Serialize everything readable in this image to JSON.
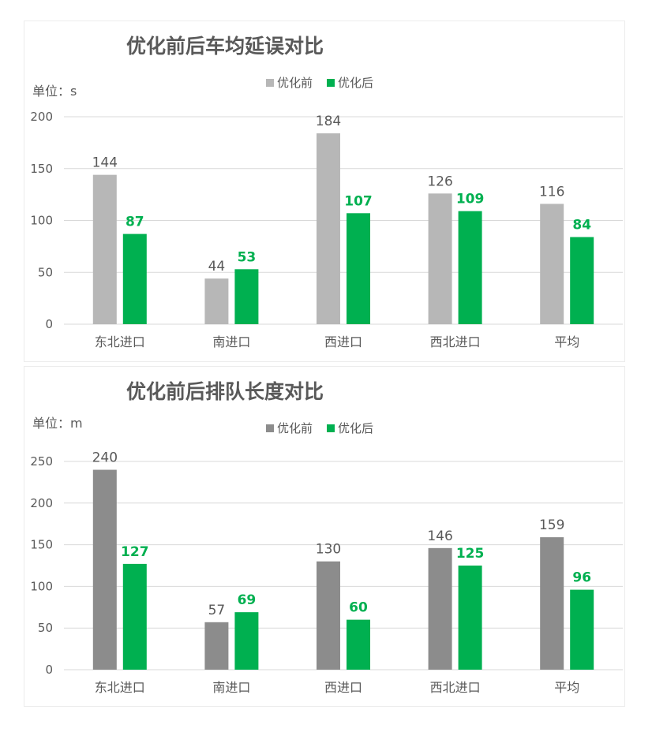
{
  "chart_data": [
    {
      "type": "bar",
      "title": "优化前后车均延误对比",
      "unit_label": "单位：s",
      "categories": [
        "东北进口",
        "南进口",
        "西进口",
        "西北进口",
        "平均"
      ],
      "series": [
        {
          "name": "优化前",
          "values": [
            144,
            44,
            184,
            126,
            116
          ],
          "color": "#b7b7b7"
        },
        {
          "name": "优化后",
          "values": [
            87,
            53,
            107,
            109,
            84
          ],
          "color": "#00b050"
        }
      ],
      "ylim": [
        0,
        200
      ],
      "yticks": [
        0,
        50,
        100,
        150,
        200
      ],
      "grid": true,
      "legend": "top-center"
    },
    {
      "type": "bar",
      "title": "优化前后排队长度对比",
      "unit_label": "单位：m",
      "categories": [
        "东北进口",
        "南进口",
        "西进口",
        "西北进口",
        "平均"
      ],
      "series": [
        {
          "name": "优化前",
          "values": [
            240,
            57,
            130,
            146,
            159
          ],
          "color": "#8c8c8c"
        },
        {
          "name": "优化后",
          "values": [
            127,
            69,
            60,
            125,
            96
          ],
          "color": "#00b050"
        }
      ],
      "ylim": [
        0,
        250
      ],
      "yticks": [
        0,
        50,
        100,
        150,
        200,
        250
      ],
      "grid": true,
      "legend": "top-center"
    }
  ]
}
